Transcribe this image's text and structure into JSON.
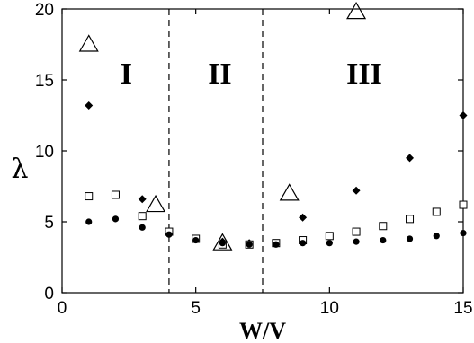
{
  "chart_data": {
    "type": "scatter",
    "xlabel": "W/V",
    "ylabel": "λ",
    "xlim": [
      0,
      15
    ],
    "ylim": [
      0,
      20
    ],
    "x_ticks": [
      "0",
      "5",
      "10",
      "15"
    ],
    "y_ticks": [
      "0",
      "5",
      "10",
      "15",
      "20"
    ],
    "grid": false,
    "vertical_lines": [
      4,
      7.5
    ],
    "regions": [
      {
        "label": "I",
        "x": 2.4,
        "y": 15.5
      },
      {
        "label": "II",
        "x": 5.9,
        "y": 15.5
      },
      {
        "label": "III",
        "x": 11.3,
        "y": 15.5
      }
    ],
    "series": [
      {
        "marker": "open-triangle",
        "points": [
          [
            1,
            17.5
          ],
          [
            3.5,
            6.2
          ],
          [
            6,
            3.5
          ],
          [
            8.5,
            7.0
          ],
          [
            11,
            19.8
          ]
        ]
      },
      {
        "marker": "filled-diamond",
        "points": [
          [
            1,
            13.2
          ],
          [
            3,
            6.6
          ],
          [
            4,
            4.2
          ],
          [
            5,
            3.8
          ],
          [
            6,
            3.6
          ],
          [
            7,
            3.5
          ],
          [
            9,
            5.3
          ],
          [
            11,
            7.2
          ],
          [
            13,
            9.5
          ],
          [
            15,
            12.5
          ]
        ]
      },
      {
        "marker": "open-square",
        "points": [
          [
            1,
            6.8
          ],
          [
            2,
            6.9
          ],
          [
            3,
            5.4
          ],
          [
            4,
            4.3
          ],
          [
            5,
            3.8
          ],
          [
            6,
            3.4
          ],
          [
            7,
            3.4
          ],
          [
            8,
            3.5
          ],
          [
            9,
            3.7
          ],
          [
            10,
            4.0
          ],
          [
            11,
            4.3
          ],
          [
            12,
            4.7
          ],
          [
            13,
            5.2
          ],
          [
            14,
            5.7
          ],
          [
            15,
            6.2
          ]
        ]
      },
      {
        "marker": "filled-circle",
        "points": [
          [
            1,
            5.0
          ],
          [
            2,
            5.2
          ],
          [
            3,
            4.6
          ],
          [
            4,
            4.1
          ],
          [
            5,
            3.7
          ],
          [
            6,
            3.5
          ],
          [
            7,
            3.4
          ],
          [
            8,
            3.4
          ],
          [
            9,
            3.5
          ],
          [
            10,
            3.5
          ],
          [
            11,
            3.6
          ],
          [
            12,
            3.7
          ],
          [
            13,
            3.8
          ],
          [
            14,
            4.0
          ],
          [
            15,
            4.2
          ]
        ]
      }
    ]
  }
}
